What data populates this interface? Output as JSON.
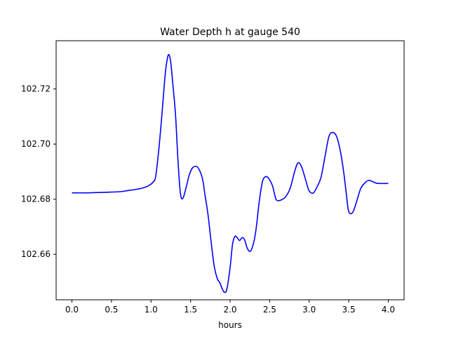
{
  "chart_data": {
    "type": "line",
    "title": "Water Depth h at gauge 540",
    "xlabel": "hours",
    "ylabel": "",
    "xlim": [
      -0.2,
      4.2
    ],
    "ylim": [
      102.6435,
      102.7375
    ],
    "grid": false,
    "x_ticks": [
      0.0,
      0.5,
      1.0,
      1.5,
      2.0,
      2.5,
      3.0,
      3.5,
      4.0
    ],
    "x_tick_labels": [
      "0.0",
      "0.5",
      "1.0",
      "1.5",
      "2.0",
      "2.5",
      "3.0",
      "3.5",
      "4.0"
    ],
    "y_ticks": [
      102.66,
      102.68,
      102.7,
      102.72
    ],
    "y_tick_labels": [
      "102.66",
      "102.68",
      "102.70",
      "102.72"
    ],
    "colors": {
      "line": "#0000ff",
      "axes": "#000000",
      "background": "#ffffff"
    },
    "series": [
      {
        "x": [
          0.0,
          0.2,
          0.4,
          0.6,
          0.7,
          0.8,
          0.9,
          0.97,
          1.03,
          1.06,
          1.1,
          1.14,
          1.18,
          1.21,
          1.23,
          1.25,
          1.28,
          1.31,
          1.34,
          1.37,
          1.4,
          1.44,
          1.48,
          1.52,
          1.56,
          1.6,
          1.65,
          1.68,
          1.72,
          1.76,
          1.8,
          1.84,
          1.87,
          1.9,
          1.93,
          1.96,
          2.0,
          2.03,
          2.06,
          2.09,
          2.12,
          2.15,
          2.18,
          2.22,
          2.26,
          2.3,
          2.33,
          2.37,
          2.41,
          2.45,
          2.48,
          2.51,
          2.54,
          2.58,
          2.62,
          2.65,
          2.7,
          2.76,
          2.82,
          2.86,
          2.9,
          2.94,
          2.97,
          3.0,
          3.05,
          3.1,
          3.15,
          3.2,
          3.25,
          3.3,
          3.35,
          3.4,
          3.44,
          3.47,
          3.5,
          3.55,
          3.6,
          3.65,
          3.7,
          3.75,
          3.8,
          3.85,
          3.9,
          3.95,
          4.0
        ],
        "y": [
          102.6823,
          102.6823,
          102.6825,
          102.6827,
          102.6831,
          102.6835,
          102.6841,
          102.6849,
          102.6863,
          102.6885,
          102.6985,
          102.7115,
          102.7255,
          102.7315,
          102.7323,
          102.7295,
          102.7205,
          102.7105,
          102.6945,
          102.6825,
          102.6802,
          102.6838,
          102.6885,
          102.6912,
          102.6919,
          102.6912,
          102.6875,
          102.682,
          102.6745,
          102.6645,
          102.6555,
          102.651,
          102.6497,
          102.6475,
          102.6462,
          102.6475,
          102.6552,
          102.6635,
          102.6665,
          102.666,
          102.665,
          102.666,
          102.6655,
          102.662,
          102.6612,
          102.6645,
          102.6695,
          102.6795,
          102.6865,
          102.6882,
          102.6878,
          102.6865,
          102.6845,
          102.68,
          102.6795,
          102.6798,
          102.6808,
          102.684,
          102.6905,
          102.6932,
          102.692,
          102.6885,
          102.6855,
          102.683,
          102.6822,
          102.6845,
          102.688,
          102.6955,
          102.7028,
          102.7042,
          102.7025,
          102.6965,
          102.689,
          102.6818,
          102.6755,
          102.6752,
          102.6792,
          102.6838,
          102.6858,
          102.6868,
          102.6864,
          102.6858,
          102.6857,
          102.6857,
          102.6857
        ]
      }
    ]
  }
}
